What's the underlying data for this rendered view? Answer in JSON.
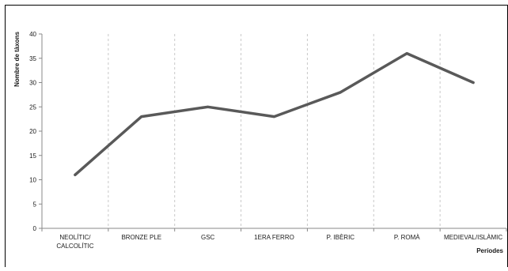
{
  "chart_data": {
    "type": "line",
    "title": "",
    "xlabel": "Períodes",
    "ylabel": "Nombre de tàxons",
    "ylim": [
      0,
      40
    ],
    "yticks": [
      0,
      5,
      10,
      15,
      20,
      25,
      30,
      35,
      40
    ],
    "categories": [
      [
        "NEOLÍTIC/",
        "CALCOLÍTIC"
      ],
      [
        "BRONZE PLE"
      ],
      [
        "GSC"
      ],
      [
        "1ERA FERRO"
      ],
      [
        "P. IBÈRIC"
      ],
      [
        "P. ROMÀ"
      ],
      [
        "MEDIEVAL/ISLÀMIC"
      ]
    ],
    "series": [
      {
        "values": [
          11,
          23,
          25,
          23,
          28,
          36,
          30
        ]
      }
    ],
    "grid": "vertical-dashed",
    "legend": "none",
    "colors": {
      "line": "#595959",
      "axis": "#888888",
      "grid": "#c8c8c8",
      "frame": "#000000"
    }
  }
}
